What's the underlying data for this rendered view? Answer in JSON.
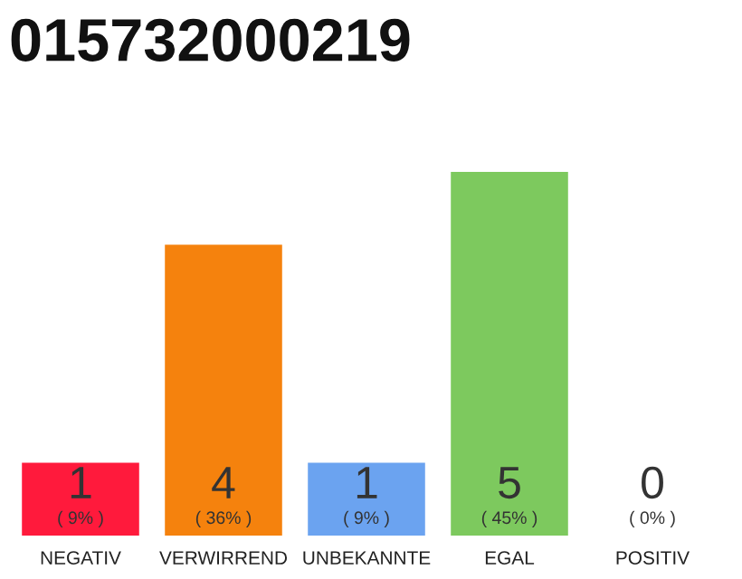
{
  "chart_data": {
    "type": "bar",
    "title": "015732000219",
    "categories": [
      "NEGATIV",
      "VERWIRREND",
      "UNBEKANNTE",
      "EGAL",
      "POSITIV"
    ],
    "values": [
      1,
      4,
      1,
      5,
      0
    ],
    "colors": [
      "#ff1a3c",
      "#f5820d",
      "#6ba3f0",
      "#7dc95e",
      "#dddddd"
    ],
    "data_labels": true,
    "annotations": [
      "( 9% )",
      "( 36% )",
      "( 9% )",
      "( 45% )",
      "( 0% )"
    ],
    "grid": false,
    "legend": false
  }
}
